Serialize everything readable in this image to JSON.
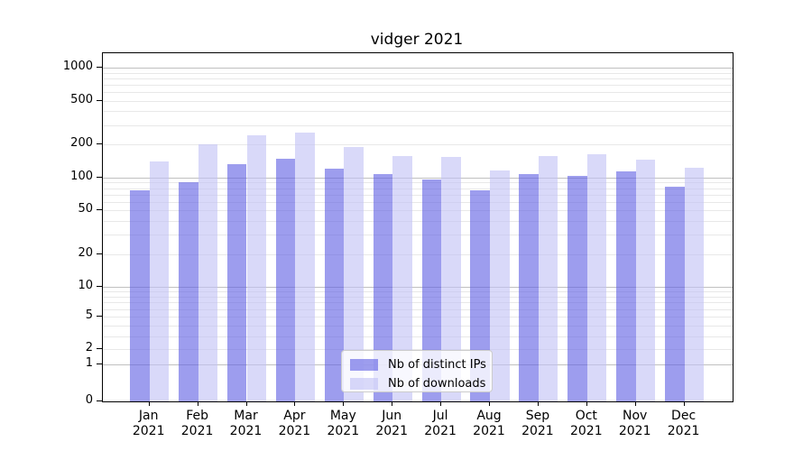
{
  "title": "vidger 2021",
  "chart_data": {
    "type": "bar",
    "title": "vidger 2021",
    "x_categories": [
      "Jan 2021",
      "Feb 2021",
      "Mar 2021",
      "Apr 2021",
      "May 2021",
      "Jun 2021",
      "Jul 2021",
      "Aug 2021",
      "Sep 2021",
      "Oct 2021",
      "Nov 2021",
      "Dec 2021"
    ],
    "series": [
      {
        "name": "Nb of distinct IPs",
        "color": "rgba(97, 97, 228, 0.62)",
        "values": [
          76,
          91,
          133,
          147,
          121,
          107,
          95,
          77,
          108,
          103,
          113,
          82
        ]
      },
      {
        "name": "Nb of downloads",
        "color": "rgba(194, 194, 245, 0.62)",
        "values": [
          140,
          199,
          241,
          257,
          188,
          158,
          154,
          116,
          158,
          164,
          146,
          123
        ]
      }
    ],
    "y_ticks": [
      0,
      1,
      2,
      5,
      10,
      20,
      50,
      100,
      200,
      500,
      1000
    ],
    "y_scale": "symlog",
    "ylim": [
      0,
      1350
    ],
    "xlabel": "",
    "ylabel": "",
    "grid": true,
    "legend_position": "lower center"
  },
  "colors": {
    "background": "#ffffff",
    "axis": "#000000",
    "grid_major": "#c0c0c0",
    "grid_minor": "#e8e8e8"
  }
}
